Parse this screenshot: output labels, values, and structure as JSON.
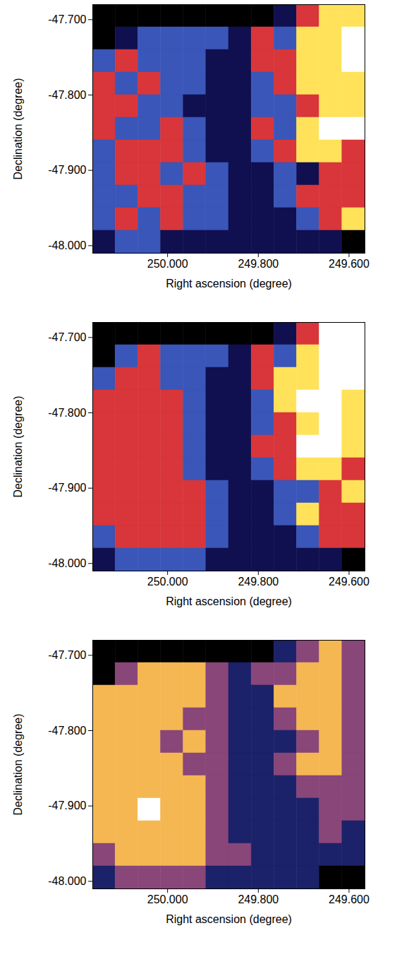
{
  "chart_data": [
    {
      "type": "heatmap",
      "xlabel": "Right ascension (degree)",
      "ylabel": "Declination (degree)",
      "xlim": [
        250.165,
        249.565
      ],
      "ylim": [
        -48.01,
        -47.68
      ],
      "xticks": [
        {
          "value": 250.0,
          "label": "250.000"
        },
        {
          "value": 249.8,
          "label": "249.800"
        },
        {
          "value": 249.6,
          "label": "249.600"
        }
      ],
      "yticks": [
        {
          "value": -47.7,
          "label": "-47.700"
        },
        {
          "value": -47.8,
          "label": "-47.800"
        },
        {
          "value": -47.9,
          "label": "-47.900"
        },
        {
          "value": -48.0,
          "label": "-48.000"
        }
      ],
      "x_edges": [
        250.165,
        250.115,
        250.065,
        250.015,
        249.965,
        249.915,
        249.865,
        249.815,
        249.765,
        249.715,
        249.665,
        249.615,
        249.565
      ],
      "y_edges": [
        -47.68,
        -47.71,
        -47.74,
        -47.77,
        -47.8,
        -47.83,
        -47.86,
        -47.89,
        -47.92,
        -47.95,
        -47.98,
        -48.01
      ],
      "values": [
        [
          0,
          0,
          0,
          0,
          0,
          0,
          0,
          0,
          1,
          3,
          4,
          4
        ],
        [
          0,
          1,
          2,
          2,
          2,
          2,
          1,
          3,
          2,
          4,
          4,
          5
        ],
        [
          2,
          3,
          2,
          2,
          2,
          1,
          1,
          3,
          3,
          4,
          4,
          5
        ],
        [
          3,
          2,
          3,
          2,
          2,
          1,
          1,
          2,
          3,
          4,
          4,
          4
        ],
        [
          3,
          3,
          2,
          2,
          1,
          1,
          1,
          2,
          2,
          3,
          4,
          4
        ],
        [
          3,
          2,
          2,
          3,
          2,
          1,
          1,
          3,
          2,
          4,
          5,
          5
        ],
        [
          2,
          3,
          3,
          3,
          2,
          1,
          1,
          2,
          3,
          4,
          4,
          3
        ],
        [
          2,
          3,
          3,
          2,
          3,
          2,
          1,
          1,
          2,
          1,
          3,
          3
        ],
        [
          2,
          2,
          3,
          3,
          2,
          2,
          1,
          1,
          2,
          3,
          3,
          3
        ],
        [
          2,
          3,
          2,
          3,
          2,
          2,
          1,
          1,
          1,
          2,
          3,
          4
        ],
        [
          1,
          2,
          2,
          1,
          1,
          1,
          1,
          1,
          1,
          1,
          1,
          0
        ]
      ]
    },
    {
      "type": "heatmap",
      "xlabel": "Right ascension (degree)",
      "ylabel": "Declination (degree)",
      "xlim": [
        250.165,
        249.565
      ],
      "ylim": [
        -48.01,
        -47.68
      ],
      "xticks": [
        {
          "value": 250.0,
          "label": "250.000"
        },
        {
          "value": 249.8,
          "label": "249.800"
        },
        {
          "value": 249.6,
          "label": "249.600"
        }
      ],
      "yticks": [
        {
          "value": -47.7,
          "label": "-47.700"
        },
        {
          "value": -47.8,
          "label": "-47.800"
        },
        {
          "value": -47.9,
          "label": "-47.900"
        },
        {
          "value": -48.0,
          "label": "-48.000"
        }
      ],
      "x_edges": [
        250.165,
        250.115,
        250.065,
        250.015,
        249.965,
        249.915,
        249.865,
        249.815,
        249.765,
        249.715,
        249.665,
        249.615,
        249.565
      ],
      "y_edges": [
        -47.68,
        -47.71,
        -47.74,
        -47.77,
        -47.8,
        -47.83,
        -47.86,
        -47.89,
        -47.92,
        -47.95,
        -47.98,
        -48.01
      ],
      "values": [
        [
          0,
          0,
          0,
          0,
          0,
          0,
          0,
          0,
          1,
          3,
          5,
          5
        ],
        [
          0,
          2,
          3,
          2,
          2,
          2,
          1,
          3,
          2,
          4,
          5,
          5
        ],
        [
          2,
          3,
          3,
          2,
          2,
          1,
          1,
          3,
          4,
          4,
          5,
          5
        ],
        [
          3,
          3,
          3,
          3,
          2,
          1,
          1,
          2,
          4,
          5,
          5,
          4
        ],
        [
          3,
          3,
          3,
          3,
          2,
          1,
          1,
          2,
          3,
          4,
          5,
          4
        ],
        [
          3,
          3,
          3,
          3,
          2,
          1,
          1,
          3,
          3,
          5,
          5,
          4
        ],
        [
          3,
          3,
          3,
          3,
          2,
          1,
          1,
          2,
          3,
          4,
          4,
          3
        ],
        [
          3,
          3,
          3,
          3,
          3,
          2,
          1,
          1,
          2,
          2,
          3,
          4
        ],
        [
          3,
          3,
          3,
          3,
          3,
          2,
          1,
          1,
          2,
          4,
          3,
          3
        ],
        [
          2,
          3,
          3,
          3,
          3,
          2,
          1,
          1,
          1,
          2,
          3,
          3
        ],
        [
          1,
          2,
          2,
          2,
          2,
          1,
          1,
          1,
          1,
          1,
          1,
          0
        ]
      ]
    },
    {
      "type": "heatmap",
      "xlabel": "Right ascension (degree)",
      "ylabel": "Declination (degree)",
      "xlim": [
        250.165,
        249.565
      ],
      "ylim": [
        -48.01,
        -47.68
      ],
      "xticks": [
        {
          "value": 250.0,
          "label": "250.000"
        },
        {
          "value": 249.8,
          "label": "249.800"
        },
        {
          "value": 249.6,
          "label": "249.600"
        }
      ],
      "yticks": [
        {
          "value": -47.7,
          "label": "-47.700"
        },
        {
          "value": -47.8,
          "label": "-47.800"
        },
        {
          "value": -47.9,
          "label": "-47.900"
        },
        {
          "value": -48.0,
          "label": "-48.000"
        }
      ],
      "x_edges": [
        250.165,
        250.115,
        250.065,
        250.015,
        249.965,
        249.915,
        249.865,
        249.815,
        249.765,
        249.715,
        249.665,
        249.615,
        249.565
      ],
      "y_edges": [
        -47.68,
        -47.71,
        -47.74,
        -47.77,
        -47.8,
        -47.83,
        -47.86,
        -47.89,
        -47.92,
        -47.95,
        -47.98,
        -48.01
      ],
      "values": [
        [
          0,
          0,
          0,
          0,
          0,
          0,
          0,
          0,
          1,
          2,
          3,
          2
        ],
        [
          0,
          2,
          3,
          3,
          3,
          2,
          1,
          2,
          2,
          3,
          3,
          2
        ],
        [
          3,
          3,
          3,
          3,
          3,
          2,
          1,
          1,
          3,
          3,
          3,
          2
        ],
        [
          3,
          3,
          3,
          3,
          2,
          2,
          1,
          1,
          2,
          3,
          3,
          2
        ],
        [
          3,
          3,
          3,
          2,
          3,
          2,
          1,
          1,
          1,
          2,
          3,
          2
        ],
        [
          3,
          3,
          3,
          3,
          2,
          2,
          1,
          1,
          2,
          3,
          3,
          2
        ],
        [
          3,
          3,
          3,
          3,
          3,
          2,
          1,
          1,
          1,
          2,
          2,
          2
        ],
        [
          3,
          3,
          4,
          3,
          3,
          2,
          1,
          1,
          1,
          1,
          2,
          2
        ],
        [
          3,
          3,
          3,
          3,
          3,
          2,
          1,
          1,
          1,
          1,
          2,
          1
        ],
        [
          2,
          3,
          3,
          3,
          3,
          2,
          2,
          1,
          1,
          1,
          1,
          1
        ],
        [
          1,
          2,
          2,
          2,
          2,
          1,
          1,
          1,
          1,
          1,
          0,
          0
        ]
      ]
    }
  ]
}
